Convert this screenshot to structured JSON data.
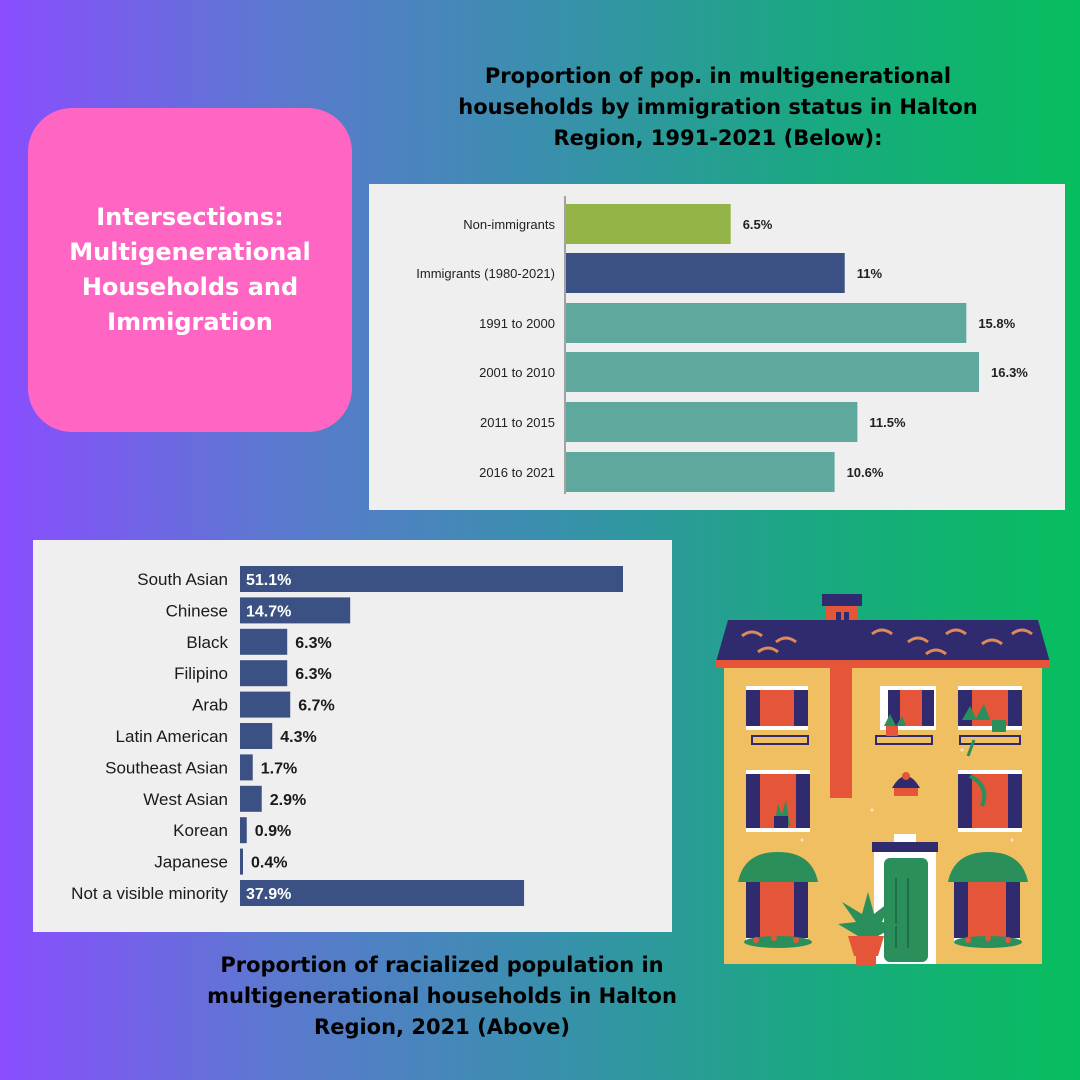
{
  "infographic": {
    "title": "Intersections:\nMultigenerational\nHouseholds and\nImmigration",
    "title_bg": "#ff66c4",
    "caption_top": "Proportion of pop. in multigenerational\nhouseholds by immigration status in Halton\nRegion, 1991-2021 (Below):",
    "caption_bottom": "Proportion of racialized population in\nmultigenerational households in Halton\nRegion, 2021 (Above)"
  },
  "chart_data": [
    {
      "type": "bar",
      "orientation": "horizontal",
      "categories": [
        "Non-immigrants",
        "Immigrants (1980-2021)",
        "1991 to 2000",
        "2001 to 2010",
        "2011 to 2015",
        "2016 to 2021"
      ],
      "values": [
        6.5,
        11,
        15.8,
        16.3,
        11.5,
        10.6
      ],
      "data_labels": [
        "6.5%",
        "11%",
        "15.8%",
        "16.3%",
        "11.5%",
        "10.6%"
      ],
      "colors": [
        "#94b447",
        "#3b5083",
        "#5ea89e",
        "#5ea89e",
        "#5ea89e",
        "#5ea89e"
      ],
      "xlim": [
        0,
        16.3
      ],
      "grid": false,
      "title": "",
      "xlabel": "",
      "ylabel": ""
    },
    {
      "type": "bar",
      "orientation": "horizontal",
      "categories": [
        "South Asian",
        "Chinese",
        "Black",
        "Filipino",
        "Arab",
        "Latin American",
        "Southeast Asian",
        "West Asian",
        "Korean",
        "Japanese",
        "Not a visible minority"
      ],
      "values": [
        51.1,
        14.7,
        6.3,
        6.3,
        6.7,
        4.3,
        1.7,
        2.9,
        0.9,
        0.4,
        37.9
      ],
      "data_labels": [
        "51.1%",
        "14.7%",
        "6.3%",
        "6.3%",
        "6.7%",
        "4.3%",
        "1.7%",
        "2.9%",
        "0.9%",
        "0.4%",
        "37.9%"
      ],
      "bar_color": "#3b5083",
      "xlim": [
        0,
        51.1
      ],
      "grid": false,
      "title": "",
      "xlabel": "",
      "ylabel": ""
    }
  ]
}
